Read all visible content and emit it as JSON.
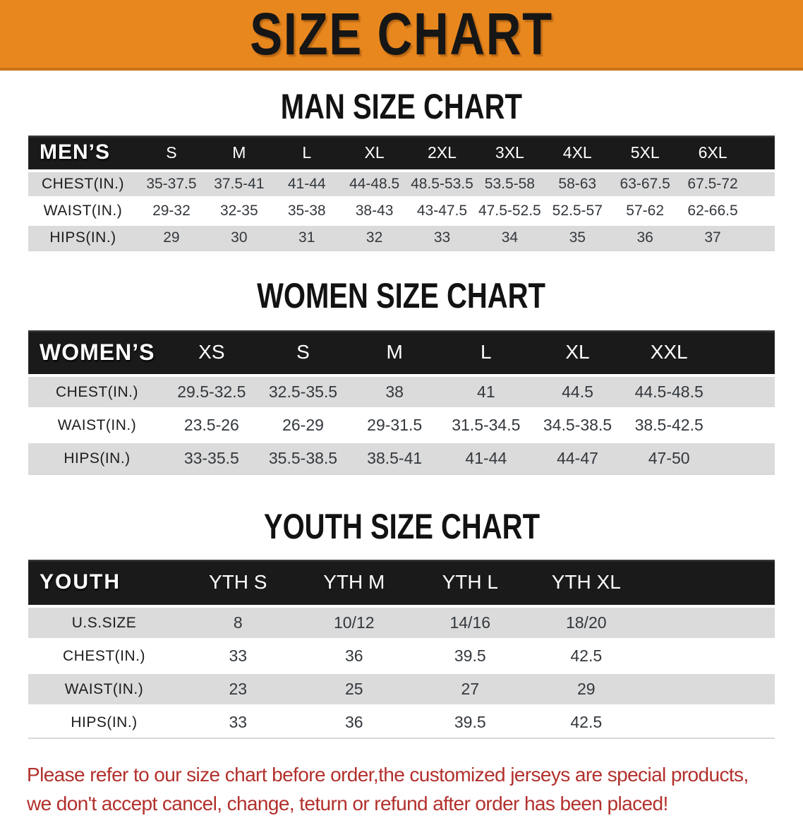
{
  "banner": {
    "title": "SIZE CHART"
  },
  "headings": {
    "men": "MAN SIZE CHART",
    "women": "WOMEN SIZE CHART",
    "youth": "YOUTH SIZE CHART"
  },
  "tables": {
    "men": {
      "corner": "MEN’S",
      "sizes": [
        "S",
        "M",
        "L",
        "XL",
        "2XL",
        "3XL",
        "4XL",
        "5XL",
        "6XL"
      ],
      "rows": [
        {
          "label": "CHEST(IN.)",
          "values": [
            "35-37.5",
            "37.5-41",
            "41-44",
            "44-48.5",
            "48.5-53.5",
            "53.5-58",
            "58-63",
            "63-67.5",
            "67.5-72"
          ]
        },
        {
          "label": "WAIST(IN.)",
          "values": [
            "29-32",
            "32-35",
            "35-38",
            "38-43",
            "43-47.5",
            "47.5-52.5",
            "52.5-57",
            "57-62",
            "62-66.5"
          ]
        },
        {
          "label": "HIPS(IN.)",
          "values": [
            "29",
            "30",
            "31",
            "32",
            "33",
            "34",
            "35",
            "36",
            "37"
          ]
        }
      ]
    },
    "women": {
      "corner": "WOMEN’S",
      "sizes": [
        "XS",
        "S",
        "M",
        "L",
        "XL",
        "XXL"
      ],
      "rows": [
        {
          "label": "CHEST(IN.)",
          "values": [
            "29.5-32.5",
            "32.5-35.5",
            "38",
            "41",
            "44.5",
            "44.5-48.5"
          ]
        },
        {
          "label": "WAIST(IN.)",
          "values": [
            "23.5-26",
            "26-29",
            "29-31.5",
            "31.5-34.5",
            "34.5-38.5",
            "38.5-42.5"
          ]
        },
        {
          "label": "HIPS(IN.)",
          "values": [
            "33-35.5",
            "35.5-38.5",
            "38.5-41",
            "41-44",
            "44-47",
            "47-50"
          ]
        }
      ]
    },
    "youth": {
      "corner": "YOUTH",
      "sizes": [
        "YTH S",
        "YTH M",
        "YTH L",
        "YTH XL"
      ],
      "rows": [
        {
          "label": "U.S.SIZE",
          "values": [
            "8",
            "10/12",
            "14/16",
            "18/20"
          ]
        },
        {
          "label": "CHEST(IN.)",
          "values": [
            "33",
            "36",
            "39.5",
            "42.5"
          ]
        },
        {
          "label": "WAIST(IN.)",
          "values": [
            "23",
            "25",
            "27",
            "29"
          ]
        },
        {
          "label": "HIPS(IN.)",
          "values": [
            "33",
            "36",
            "39.5",
            "42.5"
          ]
        }
      ]
    }
  },
  "footer": {
    "lines": [
      "Please refer to our size chart before order,the customized jerseys are special products,",
      "we don't accept cancel, change, teturn or refund after order has been placed!"
    ]
  },
  "colors": {
    "banner_orange": "#E8871E",
    "header_black": "#1A1A1A",
    "row_gray": "#DBDBDB",
    "footer_red": "#B2302C"
  }
}
